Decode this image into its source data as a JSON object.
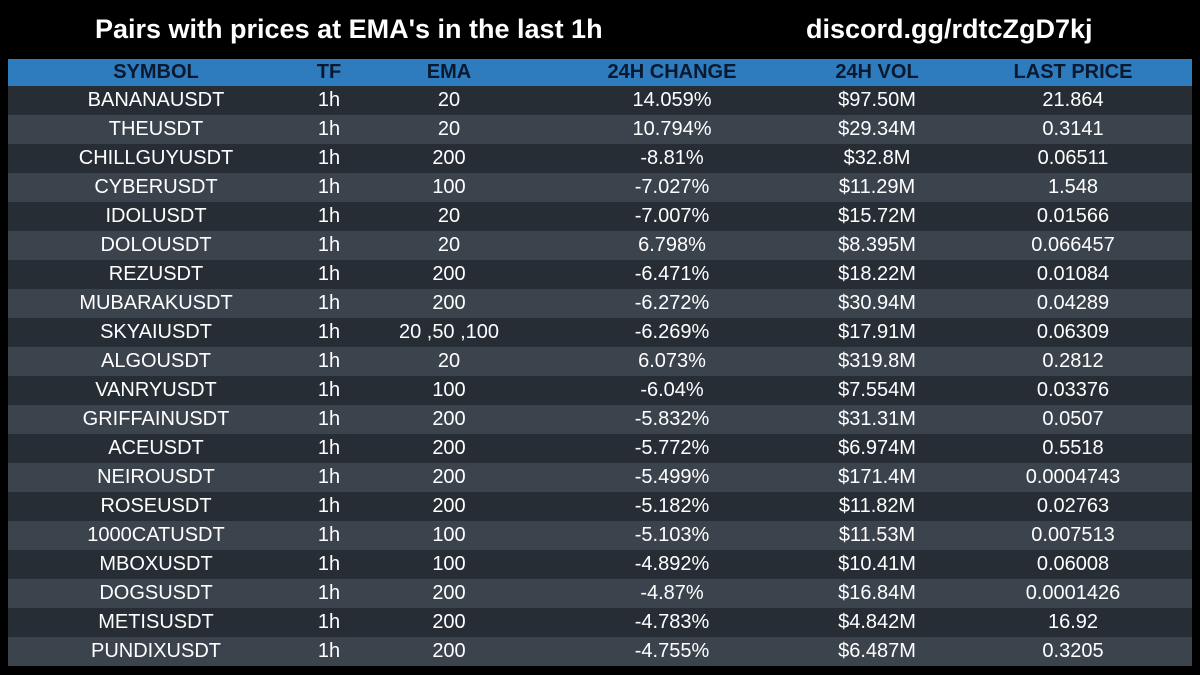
{
  "header": {
    "title": "Pairs with prices at EMA's in the last 1h",
    "link": "discord.gg/rdtcZgD7kj"
  },
  "colors": {
    "background": "#000000",
    "header_row": "#2e7bbd",
    "header_text": "#0b1930",
    "row_dark": "#262d35",
    "row_light": "#3b434c",
    "text": "#ffffff"
  },
  "table": {
    "columns": [
      "SYMBOL",
      "TF",
      "EMA",
      "24H CHANGE",
      "24H VOL",
      "LAST PRICE"
    ],
    "rows": [
      [
        "BANANAUSDT",
        "1h",
        "20",
        "14.059%",
        "$97.50M",
        "21.864"
      ],
      [
        "THEUSDT",
        "1h",
        "20",
        "10.794%",
        "$29.34M",
        "0.3141"
      ],
      [
        "CHILLGUYUSDT",
        "1h",
        "200",
        "-8.81%",
        "$32.8M",
        "0.06511"
      ],
      [
        "CYBERUSDT",
        "1h",
        "100",
        "-7.027%",
        "$11.29M",
        "1.548"
      ],
      [
        "IDOLUSDT",
        "1h",
        "20",
        "-7.007%",
        "$15.72M",
        "0.01566"
      ],
      [
        "DOLOUSDT",
        "1h",
        "20",
        "6.798%",
        "$8.395M",
        "0.066457"
      ],
      [
        "REZUSDT",
        "1h",
        "200",
        "-6.471%",
        "$18.22M",
        "0.01084"
      ],
      [
        "MUBARAKUSDT",
        "1h",
        "200",
        "-6.272%",
        "$30.94M",
        "0.04289"
      ],
      [
        "SKYAIUSDT",
        "1h",
        "20 ,50 ,100",
        "-6.269%",
        "$17.91M",
        "0.06309"
      ],
      [
        "ALGOUSDT",
        "1h",
        "20",
        "6.073%",
        "$319.8M",
        "0.2812"
      ],
      [
        "VANRYUSDT",
        "1h",
        "100",
        "-6.04%",
        "$7.554M",
        "0.03376"
      ],
      [
        "GRIFFAINUSDT",
        "1h",
        "200",
        "-5.832%",
        "$31.31M",
        "0.0507"
      ],
      [
        "ACEUSDT",
        "1h",
        "200",
        "-5.772%",
        "$6.974M",
        "0.5518"
      ],
      [
        "NEIROUSDT",
        "1h",
        "200",
        "-5.499%",
        "$171.4M",
        "0.0004743"
      ],
      [
        "ROSEUSDT",
        "1h",
        "200",
        "-5.182%",
        "$11.82M",
        "0.02763"
      ],
      [
        "1000CATUSDT",
        "1h",
        "100",
        "-5.103%",
        "$11.53M",
        "0.007513"
      ],
      [
        "MBOXUSDT",
        "1h",
        "100",
        "-4.892%",
        "$10.41M",
        "0.06008"
      ],
      [
        "DOGSUSDT",
        "1h",
        "200",
        "-4.87%",
        "$16.84M",
        "0.0001426"
      ],
      [
        "METISUSDT",
        "1h",
        "200",
        "-4.783%",
        "$4.842M",
        "16.92"
      ],
      [
        "PUNDIXUSDT",
        "1h",
        "200",
        "-4.755%",
        "$6.487M",
        "0.3205"
      ]
    ]
  }
}
